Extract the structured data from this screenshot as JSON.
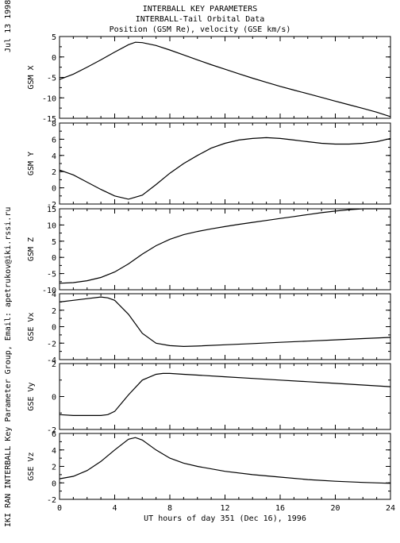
{
  "header": {
    "line1": "INTERBALL KEY PARAMETERS",
    "line2": "INTERBALL-Tail Orbital Data",
    "line3": "Position (GSM Re), velocity (GSE km/s)"
  },
  "side": {
    "date": "Jul 13 1998",
    "credit": "IKI RAN INTERBALL Key Parameter Group, Email: apetrukov@iki.rssi.ru"
  },
  "chart_data": {
    "type": "line",
    "xlabel": "UT hours of day 351 (Dec 16), 1996",
    "xlim": [
      0,
      24
    ],
    "xticks": [
      0,
      4,
      8,
      12,
      16,
      20,
      24
    ],
    "panels": [
      {
        "ylabel": "GSM X",
        "ylim": [
          -15,
          5
        ],
        "yticks": [
          5,
          0,
          -5,
          -10,
          -15
        ],
        "x": [
          0,
          1,
          2,
          3,
          4,
          5,
          5.5,
          6,
          7,
          8,
          9,
          10,
          11,
          12,
          13,
          14,
          15,
          16,
          17,
          18,
          19,
          20,
          21,
          22,
          23,
          24
        ],
        "values": [
          -5.5,
          -4.2,
          -2.5,
          -0.7,
          1.2,
          3.0,
          3.6,
          3.5,
          2.8,
          1.7,
          0.5,
          -0.7,
          -1.9,
          -3.0,
          -4.1,
          -5.2,
          -6.2,
          -7.2,
          -8.1,
          -9.0,
          -9.9,
          -10.8,
          -11.7,
          -12.6,
          -13.5,
          -14.6
        ]
      },
      {
        "ylabel": "GSM Y",
        "ylim": [
          -2,
          8
        ],
        "yticks": [
          8,
          6,
          4,
          2,
          0,
          -2
        ],
        "x": [
          0,
          1,
          2,
          3,
          4,
          5,
          6,
          7,
          8,
          9,
          10,
          11,
          12,
          13,
          14,
          15,
          16,
          17,
          18,
          19,
          20,
          21,
          22,
          23,
          24
        ],
        "values": [
          2.2,
          1.6,
          0.7,
          -0.2,
          -1.0,
          -1.4,
          -0.9,
          0.4,
          1.8,
          3.0,
          4.0,
          4.9,
          5.5,
          5.9,
          6.1,
          6.2,
          6.1,
          5.9,
          5.7,
          5.5,
          5.4,
          5.4,
          5.5,
          5.7,
          6.1
        ]
      },
      {
        "ylabel": "GSM Z",
        "ylim": [
          -10,
          15
        ],
        "yticks": [
          15,
          10,
          5,
          0,
          -5,
          -10
        ],
        "x": [
          0,
          1,
          2,
          3,
          4,
          5,
          6,
          7,
          8,
          9,
          10,
          11,
          12,
          13,
          14,
          15,
          16,
          17,
          18,
          19,
          20,
          21,
          22,
          23,
          24
        ],
        "values": [
          -8.0,
          -7.8,
          -7.2,
          -6.2,
          -4.5,
          -2.0,
          1.0,
          3.6,
          5.6,
          7.0,
          8.0,
          8.8,
          9.5,
          10.2,
          10.8,
          11.4,
          12.0,
          12.6,
          13.2,
          13.8,
          14.3,
          14.7,
          15.0,
          15.0,
          15.0
        ]
      },
      {
        "ylabel": "GSE Vx",
        "ylim": [
          -4,
          4
        ],
        "yticks": [
          4,
          2,
          0,
          -2,
          -4
        ],
        "x": [
          0,
          1,
          2,
          3,
          3.5,
          4,
          5,
          6,
          7,
          8,
          9,
          10,
          12,
          14,
          16,
          18,
          20,
          22,
          24
        ],
        "values": [
          3.0,
          3.2,
          3.4,
          3.6,
          3.5,
          3.2,
          1.5,
          -0.8,
          -2.0,
          -2.3,
          -2.4,
          -2.35,
          -2.2,
          -2.05,
          -1.9,
          -1.75,
          -1.6,
          -1.45,
          -1.3
        ]
      },
      {
        "ylabel": "GSE Vy",
        "ylim": [
          -2,
          2
        ],
        "yticks": [
          2,
          0,
          -2
        ],
        "x": [
          0,
          1,
          2,
          3,
          3.5,
          4,
          5,
          6,
          7,
          7.5,
          8,
          9,
          10,
          12,
          14,
          16,
          18,
          20,
          22,
          24
        ],
        "values": [
          -1.1,
          -1.15,
          -1.15,
          -1.15,
          -1.1,
          -0.9,
          0.1,
          1.0,
          1.35,
          1.4,
          1.4,
          1.35,
          1.3,
          1.2,
          1.1,
          1.0,
          0.9,
          0.8,
          0.7,
          0.6
        ]
      },
      {
        "ylabel": "GSE Vz",
        "ylim": [
          -2,
          6
        ],
        "yticks": [
          6,
          4,
          2,
          0,
          -2
        ],
        "x": [
          0,
          1,
          2,
          3,
          4,
          5,
          5.5,
          6,
          7,
          8,
          9,
          10,
          12,
          14,
          16,
          18,
          20,
          22,
          24
        ],
        "values": [
          0.5,
          0.8,
          1.5,
          2.6,
          4.0,
          5.3,
          5.5,
          5.2,
          4.0,
          3.0,
          2.4,
          2.0,
          1.4,
          1.0,
          0.7,
          0.4,
          0.2,
          0.05,
          -0.05
        ]
      }
    ]
  }
}
